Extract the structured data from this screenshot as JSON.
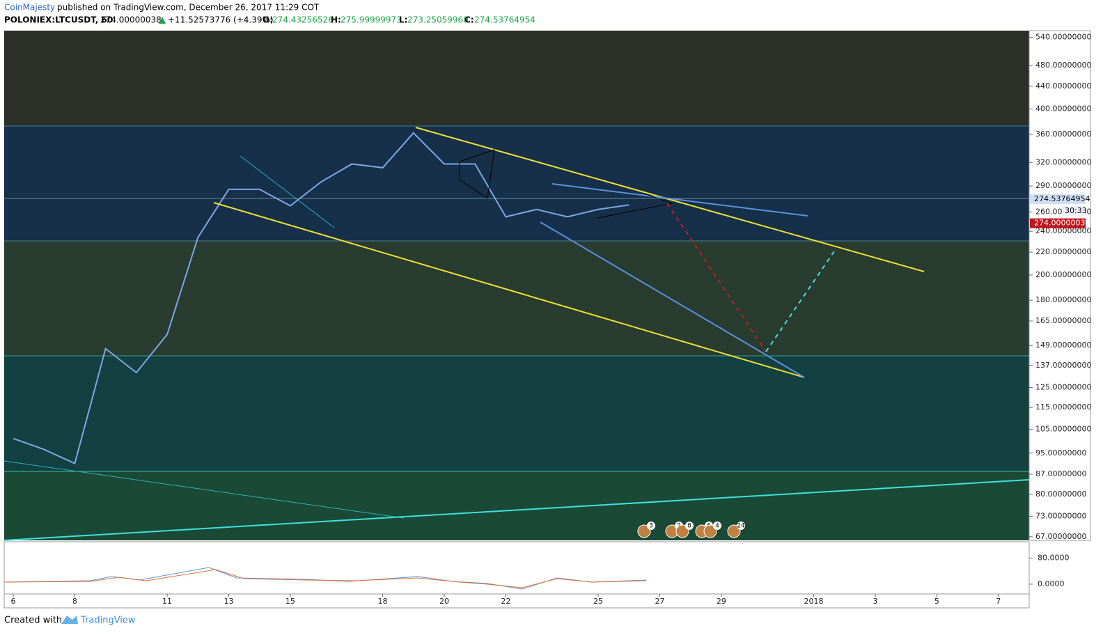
{
  "header": {
    "author": "CoinMajesty",
    "published": "published on TradingView.com, December 26, 2017 11:29 COT",
    "symbol": "POLONIEX:LTCUSDT, 60",
    "last": "274.00000038",
    "change": "+11.52573776 (+4.39%)",
    "o_label": "O:",
    "o": "274.43256526",
    "h_label": "H:",
    "h": "275.99999973",
    "l_label": "L:",
    "l": "273.25059960",
    "c_label": "C:",
    "c": "274.53764954"
  },
  "chart_data": {
    "type": "line",
    "log_scale": true,
    "x": [
      "2017-12-06",
      "2017-12-07",
      "2017-12-08",
      "2017-12-09",
      "2017-12-10",
      "2017-12-11",
      "2017-12-12",
      "2017-12-13",
      "2017-12-14",
      "2017-12-15",
      "2017-12-16",
      "2017-12-17",
      "2017-12-18",
      "2017-12-19",
      "2017-12-20",
      "2017-12-21",
      "2017-12-22",
      "2017-12-23",
      "2017-12-24",
      "2017-12-25",
      "2017-12-26"
    ],
    "series": [
      {
        "name": "LTCUSDT",
        "color": "#7ea6e8",
        "values": [
          101,
          96.5,
          91,
          147,
          133,
          156,
          234,
          286,
          286,
          267,
          295,
          318,
          313,
          362,
          318,
          318,
          255,
          263,
          255,
          263,
          268
        ]
      }
    ],
    "xlim": [
      "2017-12-06",
      "2018-01-08"
    ],
    "xticks": [
      {
        "value": "2017-12-06",
        "label": "6"
      },
      {
        "value": "2017-12-08",
        "label": "8"
      },
      {
        "value": "2017-12-11",
        "label": "11"
      },
      {
        "value": "2017-12-13",
        "label": "13"
      },
      {
        "value": "2017-12-15",
        "label": "15"
      },
      {
        "value": "2017-12-18",
        "label": "18"
      },
      {
        "value": "2017-12-20",
        "label": "20"
      },
      {
        "value": "2017-12-22",
        "label": "22"
      },
      {
        "value": "2017-12-25",
        "label": "25"
      },
      {
        "value": "2017-12-27",
        "label": "27"
      },
      {
        "value": "2017-12-29",
        "label": "29"
      },
      {
        "value": "2018-01-01",
        "label": "2018"
      },
      {
        "value": "2018-01-03",
        "label": "3"
      },
      {
        "value": "2018-01-05",
        "label": "5"
      },
      {
        "value": "2018-01-07",
        "label": "7"
      }
    ],
    "ylim": [
      66,
      555
    ],
    "yticks": [
      {
        "value": 540,
        "label": "540.00000000"
      },
      {
        "value": 480,
        "label": "480.00000000"
      },
      {
        "value": 440,
        "label": "440.00000000"
      },
      {
        "value": 400,
        "label": "400.00000000"
      },
      {
        "value": 360,
        "label": "360.00000000"
      },
      {
        "value": 320,
        "label": "320.00000000"
      },
      {
        "value": 290,
        "label": "290.00000000"
      },
      {
        "value": 260,
        "label": "260.00000000"
      },
      {
        "value": 240,
        "label": "240.00000000"
      },
      {
        "value": 220,
        "label": "220.00000000"
      },
      {
        "value": 200,
        "label": "200.00000000"
      },
      {
        "value": 180,
        "label": "180.00000000"
      },
      {
        "value": 165,
        "label": "165.00000000"
      },
      {
        "value": 149,
        "label": "149.00000000"
      },
      {
        "value": 137,
        "label": "137.00000000"
      },
      {
        "value": 125,
        "label": "125.00000000"
      },
      {
        "value": 115,
        "label": "115.00000000"
      },
      {
        "value": 105,
        "label": "105.00000000"
      },
      {
        "value": 95,
        "label": "95.00000000"
      },
      {
        "value": 87,
        "label": "87.00000000"
      },
      {
        "value": 80,
        "label": "80.00000000"
      },
      {
        "value": 73,
        "label": "73.00000000"
      },
      {
        "value": 67,
        "label": "67.00000000"
      }
    ],
    "price_labels": [
      {
        "value": 274.53764954,
        "label": "274.53764954"
      },
      {
        "value": 274.00000038,
        "label": "274.00000038"
      }
    ],
    "countdown": "30:33",
    "macd_ylim": [
      -30,
      130
    ],
    "macd_yticks": [
      {
        "value": 80,
        "label": "80.0000"
      },
      {
        "value": 0,
        "label": "0.0000"
      }
    ],
    "events": [
      "3",
      "2",
      "8",
      "6",
      "4",
      "24"
    ]
  },
  "footer": {
    "created": "Created with",
    "brand": "TradingView"
  }
}
